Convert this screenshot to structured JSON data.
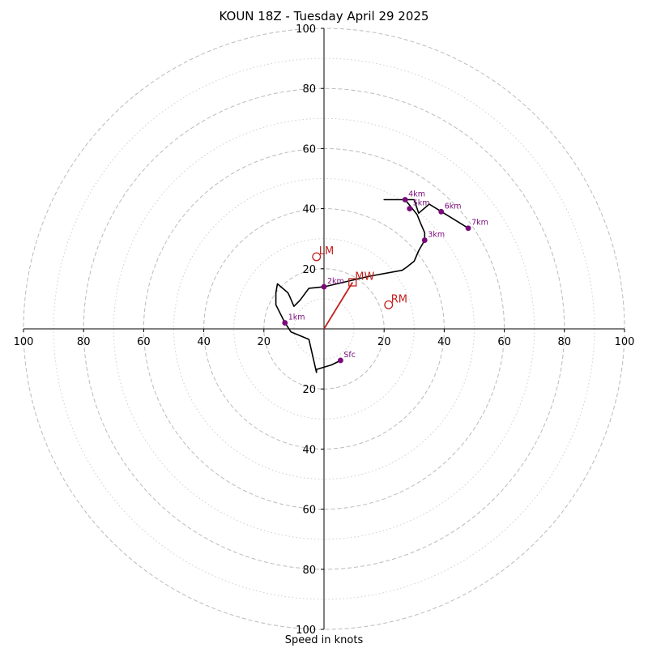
{
  "chart_data": {
    "type": "scatter",
    "title": "KOUN 18Z - Tuesday April 29 2025",
    "xlabel": "Speed in knots",
    "ylabel": "",
    "xlim": [
      -100,
      100
    ],
    "ylim": [
      -100,
      100
    ],
    "grid": true,
    "ring_major": [
      20,
      40,
      60,
      80,
      100
    ],
    "ring_minor": [
      10,
      30,
      50,
      70,
      90
    ],
    "tick_values": [
      20,
      40,
      60,
      80,
      100
    ],
    "colors": {
      "hodograph": "#000000",
      "height_marker": "#7a0a7a",
      "storm_motion": "#c0201c",
      "grid": "#bbbbbb",
      "minor_grid": "#cfcfcf",
      "axis": "#000000"
    },
    "hodograph": {
      "u": [
        5.5,
        2.5,
        -2.5,
        -2.5,
        -5,
        -11,
        -13,
        -16,
        -16,
        -15.5,
        -12,
        -11.5,
        -10,
        -8,
        -5,
        0,
        15,
        26,
        27.5,
        30,
        31.5,
        33.5,
        33.5,
        32,
        31,
        27,
        20,
        27,
        30,
        31,
        31.5,
        35,
        48
      ],
      "v": [
        -10.5,
        -12,
        -13.5,
        -14.5,
        -3.5,
        -1,
        2,
        8,
        12,
        15,
        12,
        11,
        7.5,
        9.5,
        13.5,
        14,
        17.5,
        19.5,
        20.5,
        22.5,
        26,
        29.5,
        32,
        35.5,
        38,
        43,
        43,
        43,
        43,
        40,
        38.5,
        41.5,
        33.5
      ]
    },
    "height_markers": [
      {
        "label": "Sfc",
        "u": 5.5,
        "v": -10.5
      },
      {
        "label": "1km",
        "u": -13,
        "v": 2
      },
      {
        "label": "2km",
        "u": 0,
        "v": 14
      },
      {
        "label": "3km",
        "u": 33.5,
        "v": 29.5
      },
      {
        "label": "4km",
        "u": 27,
        "v": 43
      },
      {
        "label": "5km",
        "u": 28.5,
        "v": 40
      },
      {
        "label": "6km",
        "u": 39,
        "v": 39
      },
      {
        "label": "7km",
        "u": 48,
        "v": 33.5
      }
    ],
    "storm_motion": [
      {
        "label": "LM",
        "u": -2.5,
        "v": 24,
        "marker": "circle"
      },
      {
        "label": "RM",
        "u": 21.5,
        "v": 8,
        "marker": "circle"
      },
      {
        "label": "MW",
        "u": 9.5,
        "v": 15.5,
        "marker": "square"
      }
    ],
    "storm_motion_vector": {
      "u": 9.5,
      "v": 15.5
    }
  }
}
